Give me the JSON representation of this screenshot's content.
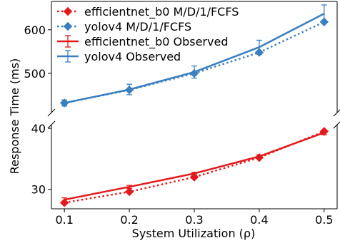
{
  "chart_data": {
    "type": "line",
    "xlabel": "System Utilization (ρ)",
    "ylabel": "Response Time (ms)",
    "x": [
      0.1,
      0.2,
      0.3,
      0.4,
      0.5
    ],
    "x_tick_labels": [
      "0.1",
      "0.2",
      "0.3",
      "0.4",
      "0.5"
    ],
    "xlim": [
      0.08,
      0.52
    ],
    "broken_y_axis": true,
    "upper_panel": {
      "ylim": [
        410,
        665
      ],
      "yticks": [
        500,
        600
      ],
      "ytick_labels": [
        "500",
        "600"
      ]
    },
    "lower_panel": {
      "ylim": [
        26.8,
        40.6
      ],
      "yticks": [
        30,
        40
      ],
      "ytick_labels": [
        "30",
        "40"
      ]
    },
    "legend": {
      "placement": "top-left",
      "entries": [
        "efficientnet_b0 M/D/1/FCFS",
        "yolov4 M/D/1/FCFS",
        "efficientnet_b0 Observed",
        "yolov4 Observed"
      ]
    },
    "series": [
      {
        "name": "efficientnet_b0 M/D/1/FCFS",
        "panel": "lower",
        "style": "dotted-diamond",
        "color": "#e31a1c",
        "values": [
          27.8,
          29.6,
          32.0,
          35.2,
          39.5
        ]
      },
      {
        "name": "yolov4 M/D/1/FCFS",
        "panel": "upper",
        "style": "dotted-diamond",
        "color": "#3a7fbf",
        "values": [
          432,
          462,
          500,
          548,
          618
        ]
      },
      {
        "name": "efficientnet_b0 Observed",
        "panel": "lower",
        "style": "solid-errorbar",
        "color": "#e31a1c",
        "values": [
          28.3,
          30.4,
          32.6,
          35.4,
          39.3
        ],
        "errors": [
          0.3,
          0.25,
          0.2,
          0.25,
          0.35
        ]
      },
      {
        "name": "yolov4 Observed",
        "panel": "upper",
        "style": "solid-errorbar",
        "color": "#3a7fbf",
        "values": [
          432,
          463,
          503,
          560,
          637
        ],
        "errors": [
          7,
          12,
          14,
          16,
          20
        ]
      }
    ]
  }
}
